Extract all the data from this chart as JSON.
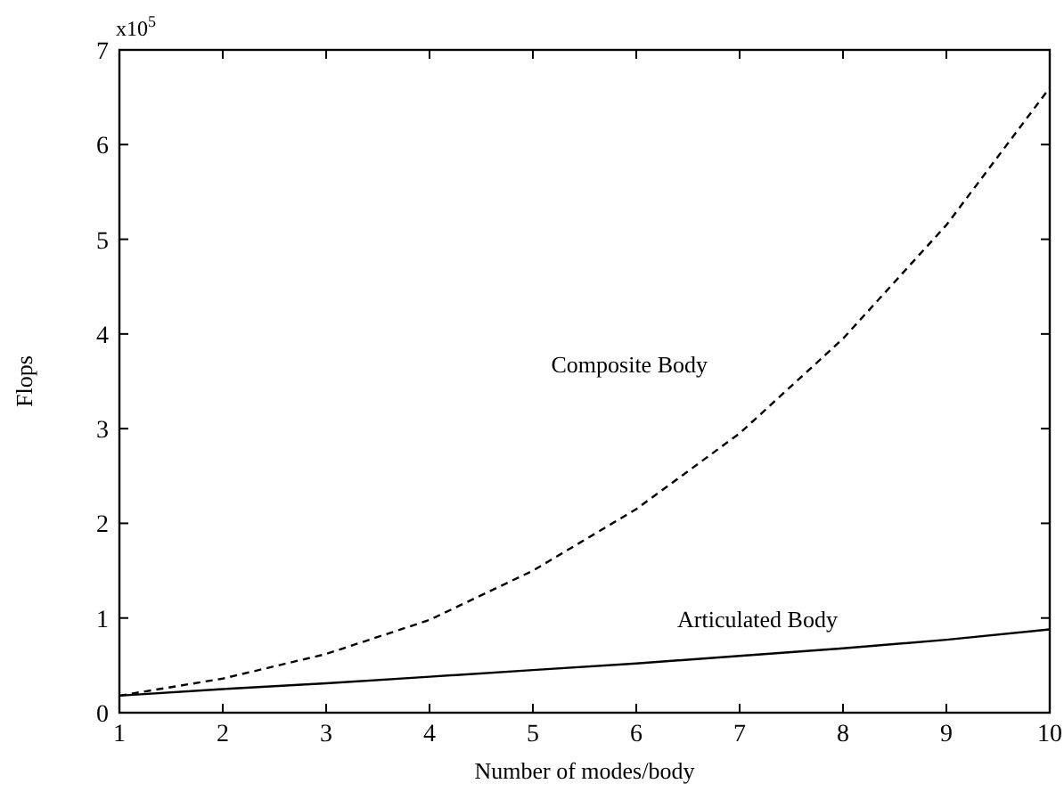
{
  "chart_data": {
    "type": "line",
    "xlabel": "Number of modes/body",
    "ylabel": "Flops",
    "annotations": [
      "x10$^{5}$"
    ],
    "x": [
      1,
      2,
      3,
      4,
      5,
      6,
      7,
      8,
      9,
      10
    ],
    "series": [
      {
        "name": "Composite Body",
        "color": "#000000",
        "line_style": "dashed",
        "values": [
          0.18,
          0.36,
          0.62,
          0.98,
          1.5,
          2.15,
          2.95,
          3.95,
          5.15,
          6.6
        ]
      },
      {
        "name": "Articulated Body",
        "color": "#000000",
        "line_style": "solid",
        "values": [
          0.18,
          0.25,
          0.31,
          0.38,
          0.45,
          0.52,
          0.6,
          0.68,
          0.77,
          0.88
        ]
      }
    ],
    "xlim": [
      1,
      10
    ],
    "xticks": [
      1,
      2,
      3,
      4,
      5,
      6,
      7,
      8,
      9,
      10
    ],
    "ylim": [
      0,
      7
    ],
    "yticks": [
      0,
      1,
      2,
      3,
      4,
      5,
      6,
      7
    ],
    "grid": false,
    "marker": "none"
  }
}
